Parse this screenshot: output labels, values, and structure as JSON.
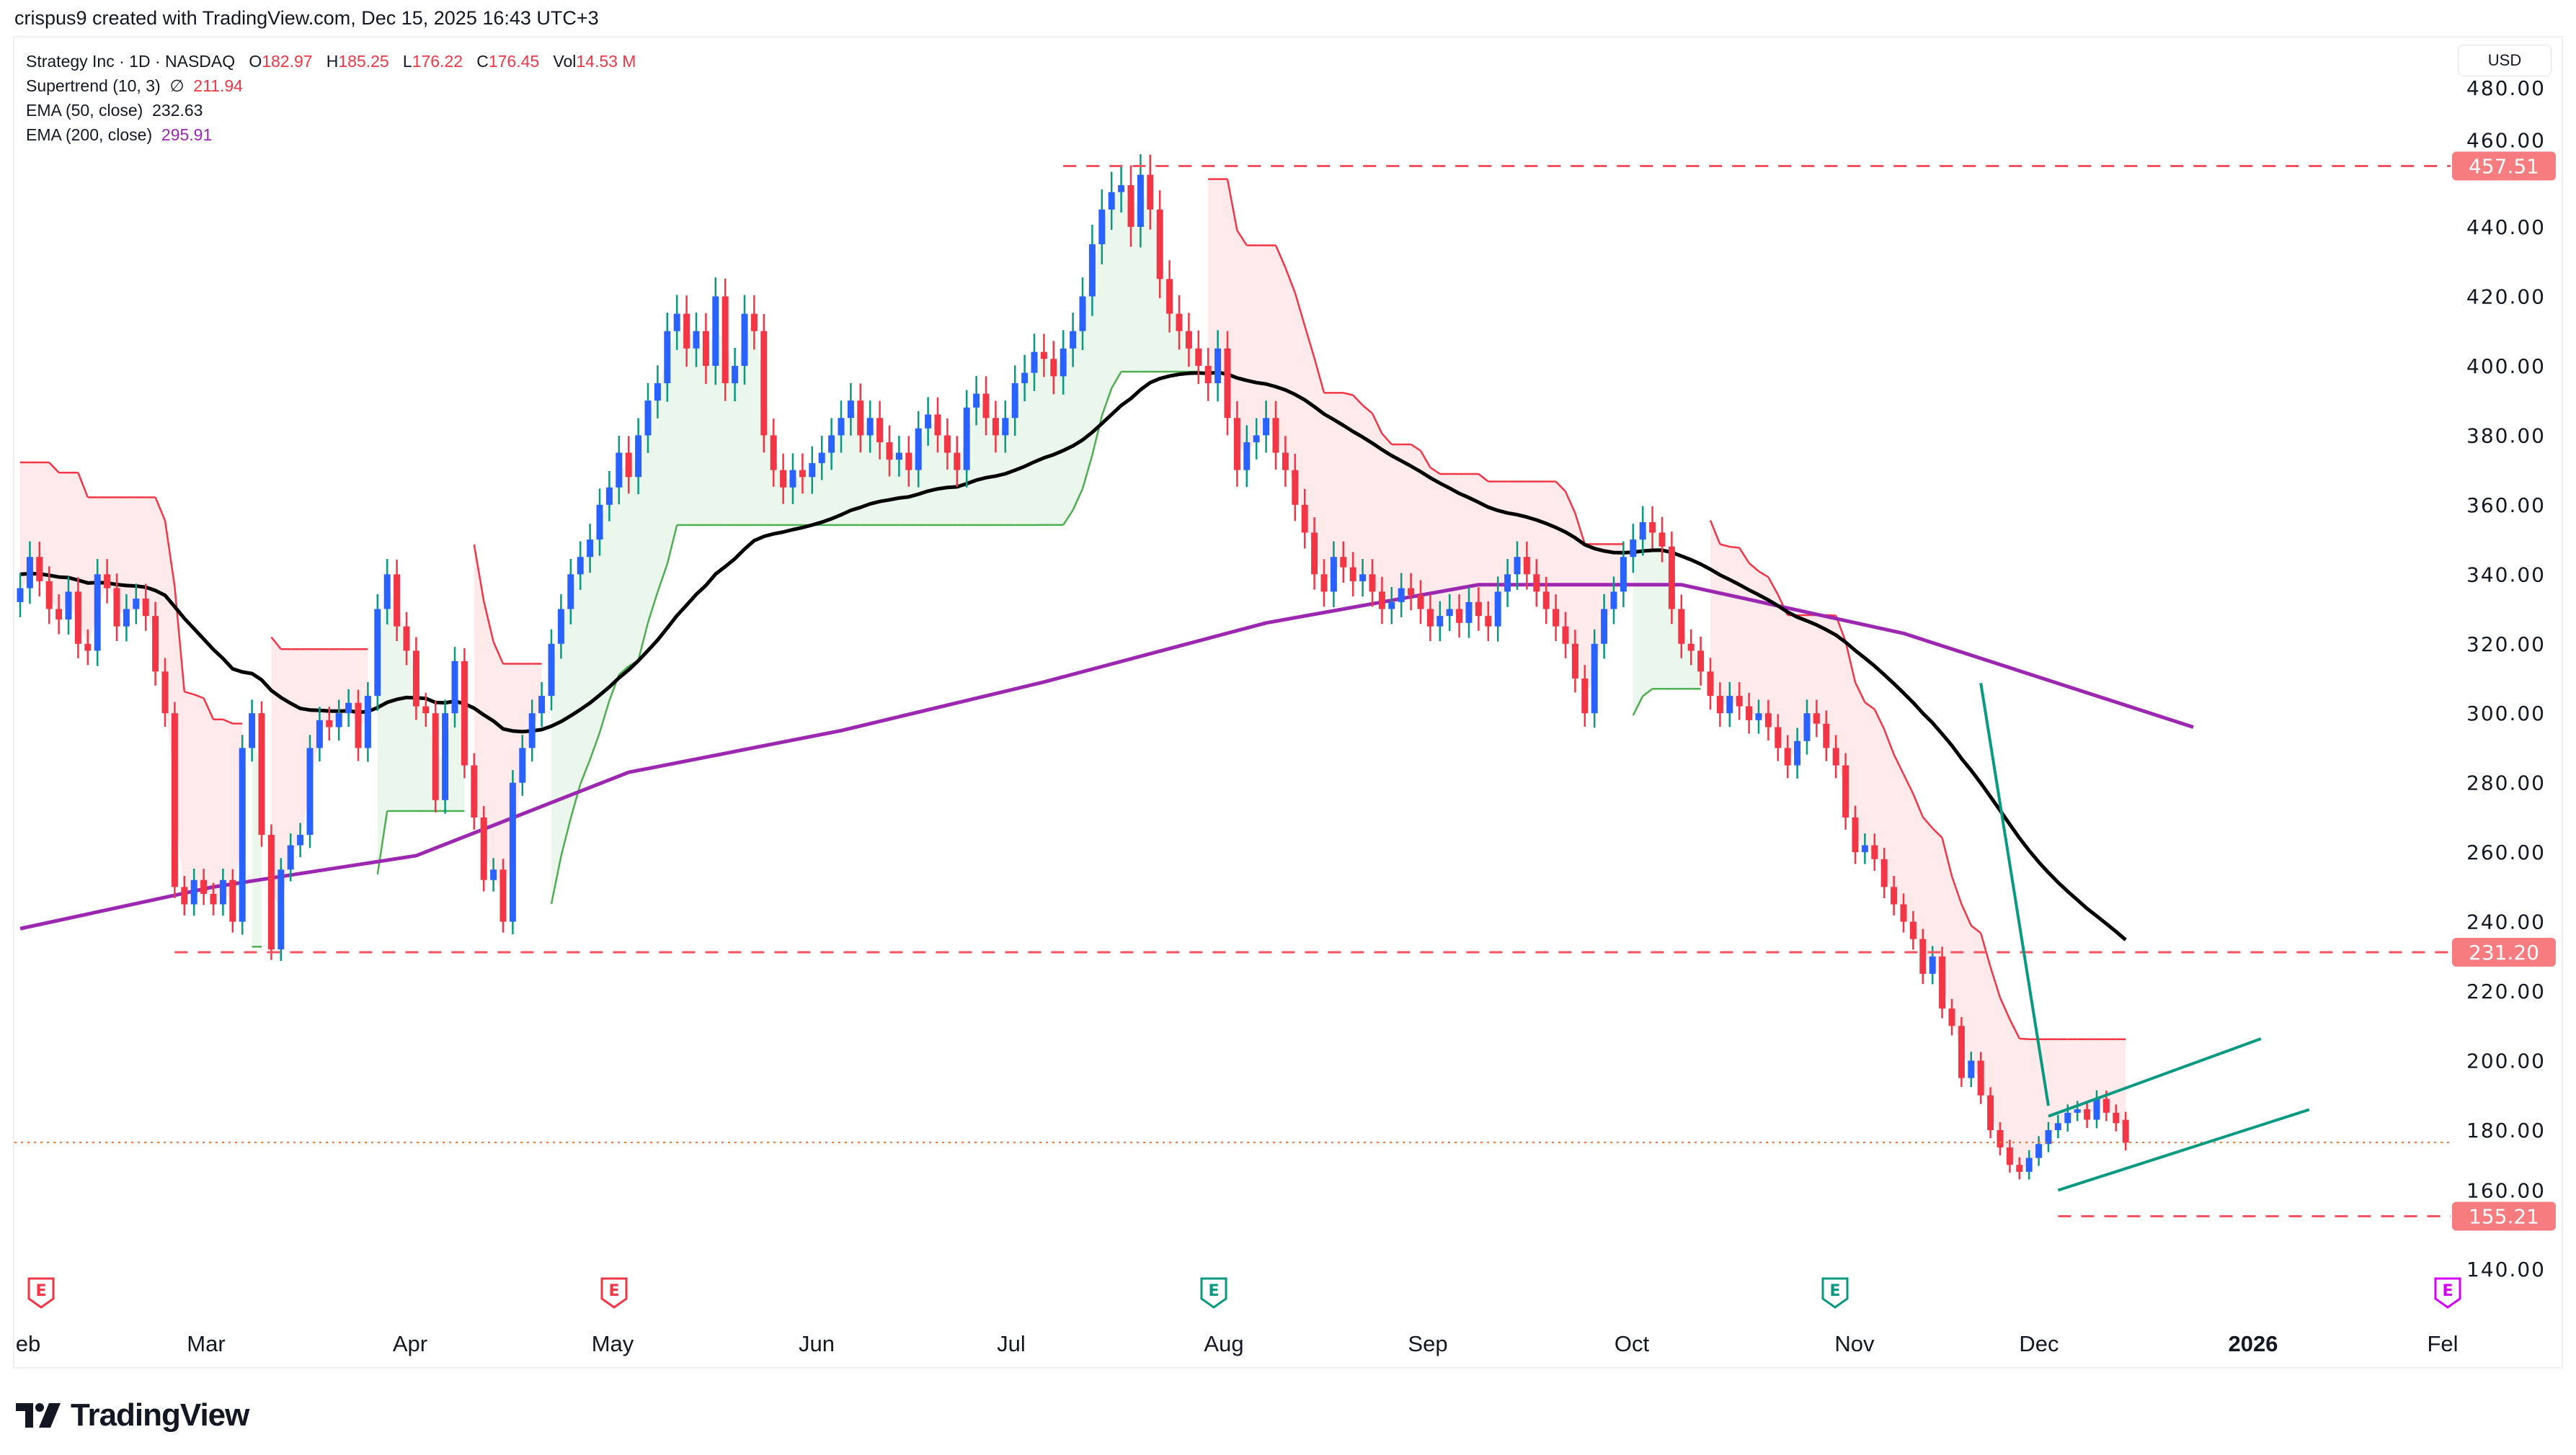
{
  "credit": "crispus9 created with TradingView.com, Dec 15, 2025 16:43 UTC+3",
  "legend": {
    "symbol": "Strategy Inc · 1D · NASDAQ",
    "o_label": "O",
    "o": "182.97",
    "h_label": "H",
    "h": "185.25",
    "l_label": "L",
    "l": "176.22",
    "c_label": "C",
    "c": "176.45",
    "vol_label": "Vol",
    "vol": "14.53 M",
    "supertrend_label": "Supertrend (10, 3)",
    "supertrend_icon": "∅",
    "supertrend_value": "211.94",
    "ema50_label": "EMA (50, close)",
    "ema50_value": "232.63",
    "ema200_label": "EMA (200, close)",
    "ema200_value": "295.91"
  },
  "currency_button": "USD",
  "logo_text": "TradingView",
  "colors": {
    "up": "#2962ff",
    "down": "#f23645",
    "ema50": "#000000",
    "ema200": "#9c27b0",
    "supertrend_up": "#4caf50",
    "supertrend_down": "#f23645",
    "trendline": "#089981",
    "level": "#f7525f"
  },
  "chart_data": {
    "type": "candlestick",
    "start_date": "2025-02-03",
    "end_date": "2025-12-15",
    "ylim": [
      130,
      485
    ],
    "y_ticks": [
      "140.00",
      "160.00",
      "180.00",
      "200.00",
      "220.00",
      "240.00",
      "260.00",
      "280.00",
      "300.00",
      "320.00",
      "340.00",
      "360.00",
      "380.00",
      "400.00",
      "420.00",
      "440.00",
      "460.00",
      "480.00"
    ],
    "x_ticks": [
      "eb",
      "Mar",
      "Apr",
      "May",
      "Jun",
      "Jul",
      "Aug",
      "Sep",
      "Oct",
      "Nov",
      "Dec",
      "2026",
      "Fel"
    ],
    "last_open": 182.97,
    "close": [
      336,
      345,
      338,
      330,
      327,
      335,
      320,
      318,
      340,
      336,
      325,
      330,
      333,
      328,
      312,
      300,
      250,
      245,
      252,
      248,
      245,
      252,
      240,
      290,
      300,
      265,
      232,
      255,
      262,
      265,
      290,
      298,
      296,
      300,
      303,
      290,
      305,
      330,
      340,
      325,
      318,
      302,
      300,
      275,
      300,
      315,
      285,
      270,
      252,
      255,
      240,
      280,
      290,
      300,
      305,
      320,
      330,
      340,
      345,
      350,
      360,
      365,
      375,
      368,
      380,
      390,
      395,
      410,
      415,
      405,
      410,
      400,
      420,
      395,
      400,
      415,
      410,
      380,
      370,
      365,
      370,
      368,
      372,
      375,
      380,
      385,
      390,
      380,
      385,
      378,
      373,
      375,
      370,
      382,
      386,
      380,
      375,
      370,
      388,
      392,
      385,
      380,
      385,
      395,
      398,
      404,
      402,
      397,
      405,
      410,
      420,
      435,
      445,
      450,
      452,
      440,
      455,
      445,
      425,
      415,
      410,
      405,
      400,
      395,
      405,
      385,
      370,
      378,
      380,
      385,
      375,
      370,
      360,
      352,
      340,
      335,
      345,
      342,
      338,
      340,
      335,
      330,
      332,
      336,
      334,
      330,
      325,
      328,
      330,
      326,
      332,
      328,
      325,
      335,
      340,
      345,
      340,
      335,
      330,
      325,
      320,
      310,
      300,
      320,
      330,
      335,
      345,
      350,
      355,
      352,
      348,
      330,
      320,
      318,
      312,
      305,
      300,
      305,
      302,
      298,
      300,
      296,
      290,
      285,
      292,
      300,
      297,
      290,
      285,
      270,
      260,
      262,
      258,
      250,
      245,
      240,
      235,
      225,
      230,
      215,
      210,
      195,
      200,
      190,
      180,
      175,
      170,
      168,
      172,
      176,
      180,
      182,
      185,
      186,
      183,
      189,
      185,
      182,
      176.45
    ],
    "ema200": [
      [
        "2025-02-03",
        238
      ],
      [
        "2025-03-03",
        250
      ],
      [
        "2025-04-01",
        259
      ],
      [
        "2025-05-01",
        283
      ],
      [
        "2025-06-02",
        295
      ],
      [
        "2025-07-01",
        309
      ],
      [
        "2025-08-01",
        326
      ],
      [
        "2025-09-02",
        337
      ],
      [
        "2025-10-01",
        337
      ],
      [
        "2025-11-03",
        323
      ],
      [
        "2025-12-15",
        296
      ]
    ],
    "indicator_values": {
      "supertrend": 211.94,
      "ema50": 232.63,
      "ema200": 295.91
    },
    "levels": [
      {
        "label": "457.51",
        "value": 457.51,
        "from": "2025-07-03"
      },
      {
        "label": "231.20",
        "value": 231.2,
        "from": "2025-02-25"
      },
      {
        "label": "155.21",
        "value": 155.21,
        "from": "2025-11-25"
      }
    ],
    "current_price": 176.45,
    "trendlines": [
      {
        "from": [
          "2025-11-13",
          308.7
        ],
        "to": [
          "2025-11-24",
          187
        ]
      },
      {
        "from": [
          "2025-11-24",
          184
        ],
        "to": [
          "2025-12-24",
          206.3
        ]
      },
      {
        "from": [
          "2025-11-25",
          162.7
        ],
        "to": [
          "2025-12-31",
          185.9
        ]
      }
    ],
    "earnings_markers": [
      {
        "label": "E",
        "status": "reported-miss"
      },
      {
        "label": "E",
        "status": "reported-miss"
      },
      {
        "label": "E",
        "status": "reported"
      },
      {
        "label": "E",
        "status": "reported"
      },
      {
        "label": "E",
        "status": "upcoming"
      }
    ]
  }
}
